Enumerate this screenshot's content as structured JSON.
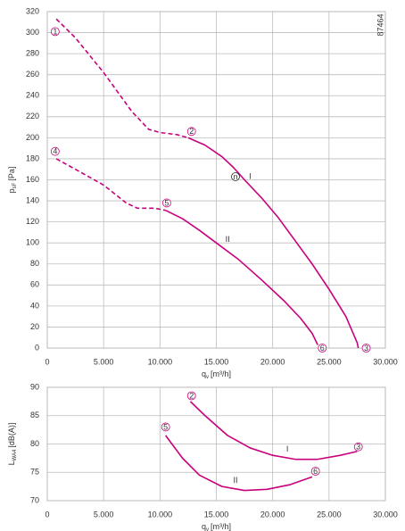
{
  "chart_data": [
    {
      "type": "line",
      "code": "87464",
      "xlabel": {
        "main": "q",
        "sub": "v",
        "unit": "[m³/h]"
      },
      "ylabel": {
        "main": "p",
        "sub": "sF",
        "unit": "[Pa]"
      },
      "xlim": [
        0,
        30000
      ],
      "xticks": [
        0,
        {
          "value": 5000,
          "label": "5.000"
        },
        {
          "value": 10000,
          "label": "10.000"
        },
        {
          "value": 15000,
          "label": "15.000"
        },
        {
          "value": 20000,
          "label": "20.000"
        },
        {
          "value": 25000,
          "label": "25.000"
        },
        {
          "value": 30000,
          "label": "30.000"
        }
      ],
      "ylim": [
        0,
        320
      ],
      "yticks": [
        0,
        20,
        40,
        60,
        80,
        100,
        120,
        140,
        160,
        180,
        200,
        220,
        240,
        260,
        280,
        300,
        320
      ],
      "grid": true,
      "series": [
        {
          "name": "I",
          "color": "#c8007d",
          "name_at": [
            18000,
            163
          ],
          "x": [
            12500,
            14000,
            15500,
            16500,
            17500,
            19000,
            20500,
            22000,
            23500,
            25000,
            26500,
            27500,
            27600
          ],
          "values": [
            200,
            193,
            182,
            172,
            160,
            143,
            124,
            102,
            80,
            56,
            30,
            5,
            0
          ],
          "extrapolated": {
            "x": [
              800,
              2500,
              5000,
              7500,
              9000,
              10000,
              11500,
              12500
            ],
            "values": [
              313,
              295,
              262,
              225,
              208,
              205,
              203,
              200
            ]
          }
        },
        {
          "name": "II",
          "color": "#c8007d",
          "name_at": [
            16000,
            103
          ],
          "x": [
            10500,
            12000,
            13500,
            15000,
            17000,
            19000,
            21000,
            22500,
            23500,
            24000
          ],
          "values": [
            131,
            123,
            112,
            100,
            84,
            65,
            45,
            28,
            14,
            3
          ],
          "extrapolated": {
            "x": [
              800,
              2500,
              5000,
              7000,
              8000,
              9500,
              10500
            ],
            "values": [
              180,
              170,
              155,
              138,
              133,
              133,
              131
            ]
          }
        }
      ],
      "annotations": [
        {
          "text": "1",
          "x": 700,
          "y": 301,
          "color": "#c8007d"
        },
        {
          "text": "2",
          "x": 12800,
          "y": 206,
          "color": "#c8007d"
        },
        {
          "text": "3",
          "x": 28300,
          "y": 0,
          "color": "#c8007d"
        },
        {
          "text": "4",
          "x": 700,
          "y": 187,
          "color": "#c8007d"
        },
        {
          "text": "5",
          "x": 10600,
          "y": 138,
          "color": "#c8007d"
        },
        {
          "text": "6",
          "x": 24400,
          "y": 0,
          "color": "#c8007d"
        },
        {
          "text": "n",
          "x": 16700,
          "y": 163,
          "color": "#222222"
        }
      ]
    },
    {
      "type": "line",
      "xlabel": {
        "main": "q",
        "sub": "v",
        "unit": "[m³/h]"
      },
      "ylabel": {
        "main": "L",
        "sub": "WA4",
        "unit": "[dB(A)]"
      },
      "xlim": [
        0,
        30000
      ],
      "xticks": [
        0,
        {
          "value": 5000,
          "label": "5.000"
        },
        {
          "value": 10000,
          "label": "10.000"
        },
        {
          "value": 15000,
          "label": "15.000"
        },
        {
          "value": 20000,
          "label": "20.000"
        },
        {
          "value": 25000,
          "label": "25.000"
        },
        {
          "value": 30000,
          "label": "30.000"
        }
      ],
      "ylim": [
        70,
        90
      ],
      "yticks": [
        70,
        75,
        80,
        85,
        90
      ],
      "grid": true,
      "series": [
        {
          "name": "I",
          "color": "#c8007d",
          "name_at": [
            21300,
            79
          ],
          "x": [
            12700,
            14000,
            16000,
            18000,
            20000,
            22000,
            24000,
            26000,
            27500
          ],
          "values": [
            87.5,
            85,
            81.5,
            79.3,
            78,
            77.3,
            77.3,
            78,
            78.7
          ]
        },
        {
          "name": "II",
          "color": "#c8007d",
          "name_at": [
            16700,
            73.5
          ],
          "x": [
            10500,
            12000,
            13500,
            15500,
            17500,
            19500,
            21500,
            23500
          ],
          "values": [
            81.5,
            77.5,
            74.5,
            72.5,
            71.8,
            72,
            72.8,
            74.2
          ]
        }
      ],
      "annotations": [
        {
          "text": "2",
          "x": 12800,
          "y": 88.5,
          "color": "#c8007d"
        },
        {
          "text": "3",
          "x": 27600,
          "y": 79.5,
          "color": "#c8007d"
        },
        {
          "text": "5",
          "x": 10500,
          "y": 83,
          "color": "#c8007d"
        },
        {
          "text": "6",
          "x": 23800,
          "y": 75.2,
          "color": "#c8007d"
        }
      ]
    }
  ]
}
